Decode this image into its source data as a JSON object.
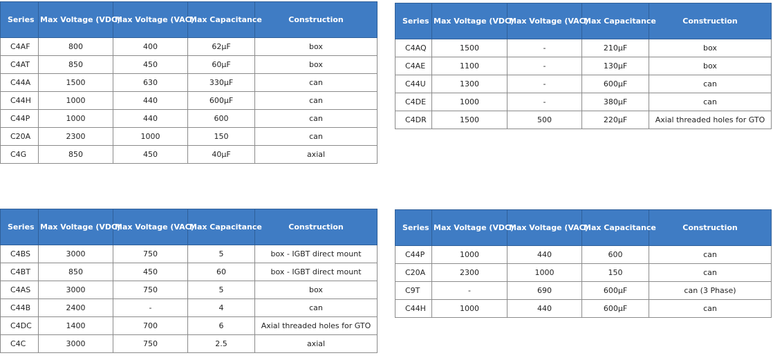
{
  "tables": [
    {
      "headers": [
        "Series",
        "Max Voltage (VDC)",
        "Max Voltage (VAC)",
        "Max Capacitance",
        "Construction"
      ],
      "rows": [
        [
          "C4AF",
          "800",
          "400",
          "62µF",
          "box"
        ],
        [
          "C4AT",
          "850",
          "450",
          "60µF",
          "box"
        ],
        [
          "C44A",
          "1500",
          "630",
          "330µF",
          "can"
        ],
        [
          "C44H",
          "1000",
          "440",
          "600µF",
          "can"
        ],
        [
          "C44P",
          "1000",
          "440",
          "600",
          "can"
        ],
        [
          "C20A",
          "2300",
          "1000",
          "150",
          "can"
        ],
        [
          "C4G",
          "850",
          "450",
          "40µF",
          "axial"
        ]
      ]
    },
    {
      "headers": [
        "Series",
        "Max Voltage (VDC)",
        "Max Voltage (VAC)",
        "Max Capacitance",
        "Construction"
      ],
      "rows": [
        [
          "C4AQ",
          "1500",
          "-",
          "210µF",
          "box"
        ],
        [
          "C4AE",
          "1100",
          "-",
          "130µF",
          "box"
        ],
        [
          "C44U",
          "1300",
          "-",
          "600µF",
          "can"
        ],
        [
          "C4DE",
          "1000",
          "-",
          "380µF",
          "can"
        ],
        [
          "C4DR",
          "1500",
          "500",
          "220µF",
          "Axial threaded holes for GTO"
        ]
      ]
    },
    {
      "headers": [
        "Series",
        "Max Voltage (VDC)",
        "Max Voltage (VAC)",
        "Max Capacitance",
        "Construction"
      ],
      "rows": [
        [
          "C4BS",
          "3000",
          "750",
          "5",
          "box - IGBT direct mount"
        ],
        [
          "C4BT",
          "850",
          "450",
          "60",
          "box - IGBT direct mount"
        ],
        [
          "C4AS",
          "3000",
          "750",
          "5",
          "box"
        ],
        [
          "C44B",
          "2400",
          "-",
          "4",
          "can"
        ],
        [
          "C4DC",
          "1400",
          "700",
          "6",
          "Axial threaded holes for GTO"
        ],
        [
          "C4C",
          "3000",
          "750",
          "2.5",
          "axial"
        ]
      ]
    },
    {
      "headers": [
        "Series",
        "Max Voltage (VDC)",
        "Max Voltage (VAC)",
        "Max Capacitance",
        "Construction"
      ],
      "rows": [
        [
          "C44P",
          "1000",
          "440",
          "600",
          "can"
        ],
        [
          "C20A",
          "2300",
          "1000",
          "150",
          "can"
        ],
        [
          "C9T",
          "-",
          "690",
          "600µF",
          "can (3 Phase)"
        ],
        [
          "C44H",
          "1000",
          "440",
          "600µF",
          "can"
        ]
      ]
    }
  ]
}
